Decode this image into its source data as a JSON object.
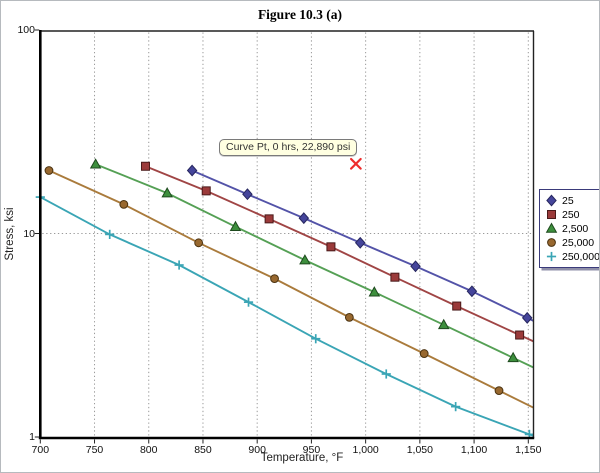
{
  "page": {
    "background": "#ffffff",
    "frame_border": "#b6babe"
  },
  "chart_data": {
    "type": "line",
    "title": "Figure 10.3 (a)",
    "xlabel": "Temperature, °F",
    "ylabel": "Stress, ksi",
    "x_axis": {
      "min": 700,
      "max": 1150,
      "tick_step": 50,
      "ticks": [
        {
          "t": 700,
          "label": "700"
        },
        {
          "t": 750,
          "label": "750"
        },
        {
          "t": 800,
          "label": "800"
        },
        {
          "t": 850,
          "label": "850"
        },
        {
          "t": 900,
          "label": "900"
        },
        {
          "t": 950,
          "label": "950"
        },
        {
          "t": 1000,
          "label": "1,000"
        },
        {
          "t": 1050,
          "label": "1,050"
        },
        {
          "t": 1100,
          "label": "1,100"
        },
        {
          "t": 1150,
          "label": "1,150"
        }
      ],
      "gridlines": [
        750,
        800,
        850,
        900,
        950,
        1000,
        1050,
        1100,
        1150
      ],
      "grid_style": "dotted"
    },
    "y_axis": {
      "scale": "log",
      "min": 1,
      "max": 100,
      "ticks": [
        {
          "v": 100,
          "label": "100"
        },
        {
          "v": 10,
          "label": "10"
        },
        {
          "v": 1,
          "label": "1"
        }
      ],
      "gridlines": [
        10
      ],
      "grid_style": "dotted"
    },
    "series": [
      {
        "name": "25",
        "marker": "diamond",
        "color": "#45459b",
        "line_color": "#5353a8",
        "edge_color": "#26265e",
        "extend_right": true,
        "points": [
          {
            "t": 840,
            "ksi": 20.4
          },
          {
            "t": 891,
            "ksi": 15.6
          },
          {
            "t": 943,
            "ksi": 11.9
          },
          {
            "t": 995,
            "ksi": 9.0
          },
          {
            "t": 1046,
            "ksi": 6.9
          },
          {
            "t": 1098,
            "ksi": 5.2
          },
          {
            "t": 1149,
            "ksi": 3.85
          }
        ]
      },
      {
        "name": "250",
        "marker": "square",
        "color": "#9b3a3a",
        "line_color": "#a04545",
        "edge_color": "#4a1a1a",
        "extend_right": true,
        "points": [
          {
            "t": 797,
            "ksi": 21.4
          },
          {
            "t": 853,
            "ksi": 16.2
          },
          {
            "t": 911,
            "ksi": 11.8
          },
          {
            "t": 968,
            "ksi": 8.6
          },
          {
            "t": 1027,
            "ksi": 6.1
          },
          {
            "t": 1084,
            "ksi": 4.4
          },
          {
            "t": 1142,
            "ksi": 3.17
          }
        ]
      },
      {
        "name": "2,500",
        "marker": "triangle",
        "color": "#3d8f3d",
        "line_color": "#55a055",
        "edge_color": "#1e4a1e",
        "extend_right": true,
        "points": [
          {
            "t": 751,
            "ksi": 21.9
          },
          {
            "t": 817,
            "ksi": 15.8
          },
          {
            "t": 880,
            "ksi": 10.8
          },
          {
            "t": 944,
            "ksi": 7.4
          },
          {
            "t": 1008,
            "ksi": 5.15
          },
          {
            "t": 1072,
            "ksi": 3.56
          },
          {
            "t": 1136,
            "ksi": 2.45
          }
        ]
      },
      {
        "name": "25,000",
        "marker": "circle",
        "color": "#98682f",
        "line_color": "#aa7b3c",
        "edge_color": "#4a3210",
        "extend_right": true,
        "points": [
          {
            "t": 708,
            "ksi": 20.4
          },
          {
            "t": 777,
            "ksi": 13.9
          },
          {
            "t": 846,
            "ksi": 9.0
          },
          {
            "t": 916,
            "ksi": 6.0
          },
          {
            "t": 985,
            "ksi": 3.87
          },
          {
            "t": 1054,
            "ksi": 2.57
          },
          {
            "t": 1123,
            "ksi": 1.69
          }
        ]
      },
      {
        "name": "250,000",
        "marker": "plus",
        "color": "#3aa5b5",
        "line_color": "#3aa5b5",
        "edge_color": "#3aa5b5",
        "extend_right": true,
        "points": [
          {
            "t": 700,
            "ksi": 15.1
          },
          {
            "t": 764,
            "ksi": 9.9
          },
          {
            "t": 828,
            "ksi": 7.0
          },
          {
            "t": 892,
            "ksi": 4.6
          },
          {
            "t": 954,
            "ksi": 3.04
          },
          {
            "t": 1019,
            "ksi": 2.04
          },
          {
            "t": 1083,
            "ksi": 1.41
          },
          {
            "t": 1151,
            "ksi": 1.03
          }
        ]
      }
    ],
    "legend": {
      "position": "right",
      "items": [
        "25",
        "250",
        "2,500",
        "25,000",
        "250,000"
      ]
    },
    "annotations": {
      "tooltip": {
        "text": "Curve Pt, 0 hrs, 22,890 psi",
        "background": "#ffffe1",
        "border": "#7a7a7a"
      },
      "cursor_marker": {
        "shape": "x",
        "color": "#ee2c2c",
        "t": 991,
        "ksi": 22.0
      }
    }
  }
}
